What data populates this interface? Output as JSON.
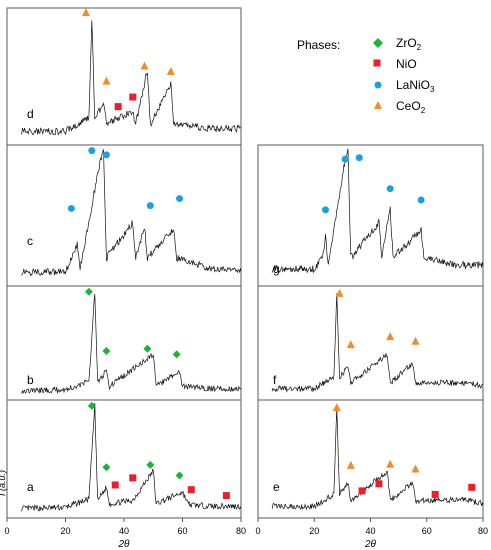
{
  "chart_data": [
    {
      "type": "line",
      "panel": "a",
      "x_range": [
        0,
        80
      ],
      "y_range": [
        0,
        1
      ],
      "x_ticks": [
        "0",
        "20",
        "40",
        "60",
        "80"
      ],
      "xlabel": "2θ",
      "ylabel": "I (a.u.)",
      "series": [
        {
          "values": [
            [
              5,
              0.08
            ],
            [
              20,
              0.09
            ],
            [
              28,
              0.16
            ],
            [
              30,
              0.95
            ],
            [
              31,
              0.15
            ],
            [
              34,
              0.26
            ],
            [
              35,
              0.12
            ],
            [
              43,
              0.15
            ],
            [
              50,
              0.4
            ],
            [
              51,
              0.12
            ],
            [
              60,
              0.22
            ],
            [
              62,
              0.12
            ],
            [
              63,
              0.11
            ],
            [
              70,
              0.1
            ],
            [
              75,
              0.1
            ],
            [
              80,
              0.1
            ]
          ]
        }
      ],
      "markers": [
        {
          "phase": "ZrO2",
          "x": 29,
          "y": 0.95
        },
        {
          "phase": "ZrO2",
          "x": 34,
          "y": 0.43
        },
        {
          "phase": "ZrO2",
          "x": 49,
          "y": 0.45
        },
        {
          "phase": "ZrO2",
          "x": 59,
          "y": 0.36
        },
        {
          "phase": "NiO",
          "x": 37,
          "y": 0.28
        },
        {
          "phase": "NiO",
          "x": 43,
          "y": 0.34
        },
        {
          "phase": "NiO",
          "x": 63,
          "y": 0.24
        },
        {
          "phase": "NiO",
          "x": 75,
          "y": 0.19
        }
      ]
    },
    {
      "type": "line",
      "panel": "b",
      "x_range": [
        0,
        80
      ],
      "y_range": [
        0,
        1
      ],
      "series": [
        {
          "values": [
            [
              5,
              0.08
            ],
            [
              20,
              0.09
            ],
            [
              28,
              0.16
            ],
            [
              30,
              0.95
            ],
            [
              31,
              0.15
            ],
            [
              34,
              0.26
            ],
            [
              35,
              0.12
            ],
            [
              50,
              0.4
            ],
            [
              51,
              0.12
            ],
            [
              59,
              0.25
            ],
            [
              60,
              0.12
            ],
            [
              70,
              0.1
            ],
            [
              80,
              0.1
            ]
          ]
        }
      ],
      "markers": [
        {
          "phase": "ZrO2",
          "x": 28,
          "y": 0.95
        },
        {
          "phase": "ZrO2",
          "x": 34,
          "y": 0.43
        },
        {
          "phase": "ZrO2",
          "x": 48,
          "y": 0.45
        },
        {
          "phase": "ZrO2",
          "x": 58,
          "y": 0.4
        }
      ]
    },
    {
      "type": "line",
      "panel": "c",
      "x_range": [
        0,
        80
      ],
      "y_range": [
        0,
        1
      ],
      "series": [
        {
          "values": [
            [
              5,
              0.1
            ],
            [
              20,
              0.1
            ],
            [
              24,
              0.3
            ],
            [
              25,
              0.12
            ],
            [
              32,
              0.9
            ],
            [
              33,
              0.95
            ],
            [
              34,
              0.2
            ],
            [
              43,
              0.45
            ],
            [
              44,
              0.2
            ],
            [
              47,
              0.42
            ],
            [
              48,
              0.2
            ],
            [
              57,
              0.4
            ],
            [
              58,
              0.2
            ],
            [
              70,
              0.12
            ],
            [
              80,
              0.12
            ]
          ]
        }
      ],
      "markers": [
        {
          "phase": "LaNiO3",
          "x": 22,
          "y": 0.55
        },
        {
          "phase": "LaNiO3",
          "x": 29,
          "y": 0.96
        },
        {
          "phase": "LaNiO3",
          "x": 34,
          "y": 0.93
        },
        {
          "phase": "LaNiO3",
          "x": 49,
          "y": 0.57
        },
        {
          "phase": "LaNiO3",
          "x": 59,
          "y": 0.62
        }
      ]
    },
    {
      "type": "line",
      "panel": "d",
      "x_range": [
        0,
        80
      ],
      "y_range": [
        0,
        1
      ],
      "series": [
        {
          "values": [
            [
              5,
              0.1
            ],
            [
              20,
              0.1
            ],
            [
              28,
              0.2
            ],
            [
              29,
              0.92
            ],
            [
              30,
              0.2
            ],
            [
              33,
              0.3
            ],
            [
              34,
              0.15
            ],
            [
              43,
              0.25
            ],
            [
              44,
              0.15
            ],
            [
              48,
              0.55
            ],
            [
              49,
              0.15
            ],
            [
              56,
              0.45
            ],
            [
              57,
              0.15
            ],
            [
              70,
              0.12
            ],
            [
              80,
              0.12
            ]
          ]
        }
      ],
      "markers": [
        {
          "phase": "CeO2",
          "x": 27,
          "y": 0.97
        },
        {
          "phase": "CeO2",
          "x": 34,
          "y": 0.47
        },
        {
          "phase": "CeO2",
          "x": 47,
          "y": 0.58
        },
        {
          "phase": "CeO2",
          "x": 56,
          "y": 0.54
        },
        {
          "phase": "NiO",
          "x": 38,
          "y": 0.28
        },
        {
          "phase": "NiO",
          "x": 43,
          "y": 0.35
        }
      ]
    },
    {
      "type": "line",
      "panel": "e",
      "x_range": [
        0,
        80
      ],
      "y_range": [
        0,
        1
      ],
      "x_ticks": [
        "0",
        "20",
        "40",
        "60",
        "80"
      ],
      "xlabel": "2θ",
      "series": [
        {
          "values": [
            [
              5,
              0.1
            ],
            [
              20,
              0.1
            ],
            [
              27,
              0.2
            ],
            [
              28,
              0.92
            ],
            [
              29,
              0.2
            ],
            [
              32,
              0.3
            ],
            [
              33,
              0.15
            ],
            [
              46,
              0.4
            ],
            [
              47,
              0.15
            ],
            [
              55,
              0.3
            ],
            [
              56,
              0.15
            ],
            [
              75,
              0.15
            ],
            [
              80,
              0.12
            ]
          ]
        }
      ],
      "markers": [
        {
          "phase": "CeO2",
          "x": 28,
          "y": 0.94
        },
        {
          "phase": "CeO2",
          "x": 33,
          "y": 0.45
        },
        {
          "phase": "CeO2",
          "x": 47,
          "y": 0.46
        },
        {
          "phase": "CeO2",
          "x": 56,
          "y": 0.42
        },
        {
          "phase": "NiO",
          "x": 37,
          "y": 0.23
        },
        {
          "phase": "NiO",
          "x": 43,
          "y": 0.29
        },
        {
          "phase": "NiO",
          "x": 63,
          "y": 0.2
        },
        {
          "phase": "NiO",
          "x": 76,
          "y": 0.26
        }
      ]
    },
    {
      "type": "line",
      "panel": "f",
      "x_range": [
        0,
        80
      ],
      "y_range": [
        0,
        1
      ],
      "series": [
        {
          "values": [
            [
              5,
              0.1
            ],
            [
              20,
              0.1
            ],
            [
              27,
              0.2
            ],
            [
              28,
              0.92
            ],
            [
              29,
              0.2
            ],
            [
              32,
              0.3
            ],
            [
              33,
              0.15
            ],
            [
              46,
              0.4
            ],
            [
              47,
              0.15
            ],
            [
              55,
              0.32
            ],
            [
              56,
              0.15
            ],
            [
              75,
              0.15
            ],
            [
              80,
              0.12
            ]
          ]
        }
      ],
      "markers": [
        {
          "phase": "CeO2",
          "x": 29,
          "y": 0.94
        },
        {
          "phase": "CeO2",
          "x": 33,
          "y": 0.49
        },
        {
          "phase": "CeO2",
          "x": 47,
          "y": 0.56
        },
        {
          "phase": "CeO2",
          "x": 56,
          "y": 0.52
        }
      ]
    },
    {
      "type": "line",
      "panel": "g",
      "x_range": [
        0,
        80
      ],
      "y_range": [
        0,
        1
      ],
      "series": [
        {
          "values": [
            [
              5,
              0.12
            ],
            [
              20,
              0.12
            ],
            [
              23,
              0.2
            ],
            [
              24,
              0.35
            ],
            [
              25,
              0.15
            ],
            [
              31,
              0.9
            ],
            [
              32,
              0.95
            ],
            [
              33,
              0.2
            ],
            [
              43,
              0.45
            ],
            [
              44,
              0.2
            ],
            [
              47,
              0.55
            ],
            [
              48,
              0.2
            ],
            [
              58,
              0.4
            ],
            [
              59,
              0.2
            ],
            [
              70,
              0.15
            ],
            [
              80,
              0.15
            ]
          ]
        }
      ],
      "markers": [
        {
          "phase": "LaNiO3",
          "x": 24,
          "y": 0.54
        },
        {
          "phase": "LaNiO3",
          "x": 31,
          "y": 0.9
        },
        {
          "phase": "LaNiO3",
          "x": 36,
          "y": 0.91
        },
        {
          "phase": "LaNiO3",
          "x": 47,
          "y": 0.69
        },
        {
          "phase": "LaNiO3",
          "x": 58,
          "y": 0.61
        }
      ]
    }
  ],
  "legend": {
    "title": "Phases:",
    "items": [
      {
        "label": "ZrO",
        "sub": "2",
        "shape": "diamond",
        "color": "#1db33a"
      },
      {
        "label": "NiO",
        "sub": "",
        "shape": "square",
        "color": "#e8202a"
      },
      {
        "label": "LaNiO",
        "sub": "3",
        "shape": "circle",
        "color": "#1f9ee0"
      },
      {
        "label": "CeO",
        "sub": "2",
        "shape": "triangle",
        "color": "#f08c2a"
      }
    ]
  }
}
